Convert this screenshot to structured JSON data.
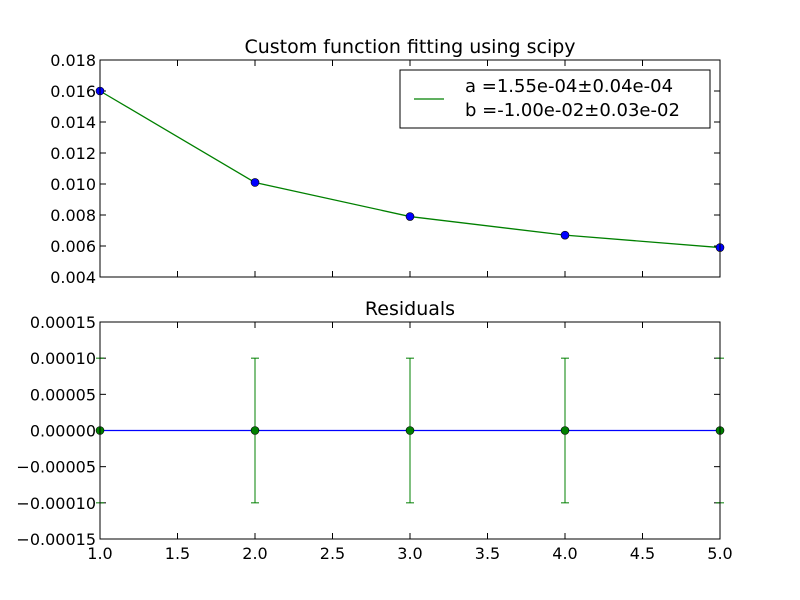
{
  "chart_data": [
    {
      "type": "line",
      "title": "Custom function fitting using scipy",
      "xlabel": "",
      "ylabel": "",
      "xlim": [
        1.0,
        5.0
      ],
      "ylim": [
        0.004,
        0.018
      ],
      "xticks": [
        "1.0",
        "1.5",
        "2.0",
        "2.5",
        "3.0",
        "3.5",
        "4.0",
        "4.5",
        "5.0"
      ],
      "yticks": [
        "0.004",
        "0.006",
        "0.008",
        "0.010",
        "0.012",
        "0.014",
        "0.016",
        "0.018"
      ],
      "yticks_values": [
        0.004,
        0.006,
        0.008,
        0.01,
        0.012,
        0.014,
        0.016,
        0.018
      ],
      "series": [
        {
          "kind": "points",
          "color": "#0000ff",
          "x": [
            1,
            2,
            3,
            4,
            5
          ],
          "y": [
            0.016,
            0.0101,
            0.0079,
            0.0067,
            0.0059
          ]
        },
        {
          "kind": "fit-line",
          "color": "#008000",
          "x": [
            1,
            2,
            3,
            4,
            5
          ],
          "y": [
            0.016,
            0.0101,
            0.0079,
            0.0067,
            0.0059
          ]
        }
      ],
      "legend": {
        "placement": "top-right",
        "line_color": "#008000",
        "entries": [
          "a =1.55e-04±0.04e-04",
          "b =-1.00e-02±0.03e-02"
        ]
      },
      "grid": false
    },
    {
      "type": "scatter",
      "title": "Residuals",
      "xlabel": "",
      "ylabel": "",
      "xlim": [
        1.0,
        5.0
      ],
      "ylim": [
        -0.00015,
        0.00015
      ],
      "xticks": [
        "1.0",
        "1.5",
        "2.0",
        "2.5",
        "3.0",
        "3.5",
        "4.0",
        "4.5",
        "5.0"
      ],
      "xticks_values": [
        1.0,
        1.5,
        2.0,
        2.5,
        3.0,
        3.5,
        4.0,
        4.5,
        5.0
      ],
      "yticks": [
        "−0.00015",
        "−0.00010",
        "−0.00005",
        "0.00000",
        "0.00005",
        "0.00010",
        "0.00015"
      ],
      "yticks_values": [
        -0.00015,
        -0.0001,
        -5e-05,
        0.0,
        5e-05,
        0.0001,
        0.00015
      ],
      "zero_line": {
        "y": 0.0,
        "color": "#0000ff"
      },
      "series": [
        {
          "kind": "errorbar-points",
          "color": "#008000",
          "x": [
            1,
            2,
            3,
            4,
            5
          ],
          "y": [
            0,
            0,
            0,
            0,
            0
          ],
          "yerr": [
            0.0001,
            0.0001,
            0.0001,
            0.0001,
            0.0001
          ]
        }
      ],
      "grid": false
    }
  ]
}
